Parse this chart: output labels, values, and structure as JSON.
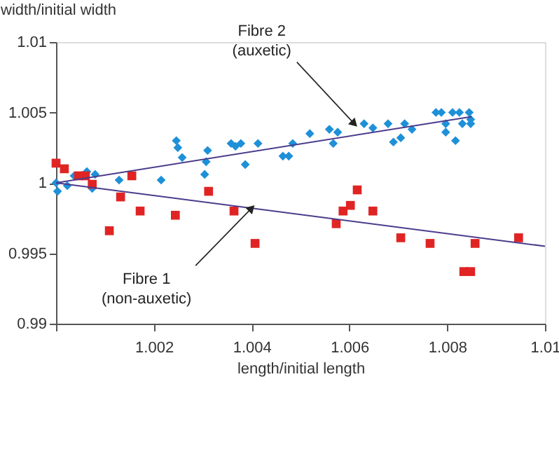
{
  "chart_data": {
    "type": "scatter",
    "xlabel": "length/initial length",
    "ylabel": "width/initial width",
    "xlim": [
      1.0,
      1.01
    ],
    "xticks": [
      {
        "value": 1.0,
        "label": null
      },
      1.002,
      1.004,
      1.006,
      1.008,
      1.01
    ],
    "ylim": [
      0.99,
      1.01
    ],
    "yticks": [
      0.99,
      0.995,
      1,
      1.005,
      1.01
    ],
    "grid": false,
    "series": [
      {
        "marker": "diamond",
        "color": "#1e90d8",
        "x": [
          1.0,
          1.00003,
          1.00023,
          1.00037,
          1.00063,
          1.00074,
          1.0008,
          1.00129,
          1.00215,
          1.00246,
          1.00249,
          1.00258,
          1.00304,
          1.00307,
          1.0031,
          1.00358,
          1.00367,
          1.00378,
          1.00387,
          1.00413,
          1.00464,
          1.00476,
          1.00484,
          1.00519,
          1.00559,
          1.00567,
          1.00576,
          1.0063,
          1.00648,
          1.00679,
          1.0069,
          1.00705,
          1.00713,
          1.00728,
          1.00777,
          1.00788,
          1.00797,
          1.00797,
          1.00811,
          1.00817,
          1.00825,
          1.00831,
          1.00845,
          1.00848,
          1.00848
        ],
        "values": [
          1.0,
          0.9994,
          0.9998,
          1.0005,
          1.0008,
          0.9996,
          1.0006,
          1.0002,
          1.0002,
          1.003,
          1.0025,
          1.0018,
          1.0006,
          1.0015,
          1.0023,
          1.0028,
          1.0026,
          1.0028,
          1.0013,
          1.0028,
          1.0019,
          1.0019,
          1.0028,
          1.0035,
          1.0038,
          1.0028,
          1.0036,
          1.0042,
          1.0039,
          1.0042,
          1.0029,
          1.0032,
          1.0042,
          1.0038,
          1.005,
          1.005,
          1.0042,
          1.0036,
          1.005,
          1.003,
          1.005,
          1.0042,
          1.005,
          1.0045,
          1.0042
        ]
      },
      {
        "marker": "square",
        "color": "#e02424",
        "x": [
          1.0,
          1.00017,
          1.00046,
          1.0006,
          1.00074,
          1.00109,
          1.00132,
          1.00155,
          1.00172,
          1.00244,
          1.00312,
          1.00364,
          1.00407,
          1.00573,
          1.00587,
          1.00602,
          1.00616,
          1.00648,
          1.00705,
          1.00765,
          1.00857,
          1.00834,
          1.00848,
          1.00946
        ],
        "values": [
          1.0014,
          1.001,
          1.0005,
          1.0005,
          0.9999,
          0.9966,
          0.999,
          1.0005,
          0.998,
          0.9977,
          0.9994,
          0.998,
          0.9957,
          0.9971,
          0.998,
          0.9984,
          0.9995,
          0.998,
          0.9961,
          0.9957,
          0.9957,
          0.9937,
          0.9937,
          0.9961
        ]
      },
      {
        "type": "line",
        "marker": "none",
        "color": "#4b3c8c",
        "x": [
          1.0,
          1.0085
        ],
        "values": [
          1.0,
          1.0047
        ]
      },
      {
        "type": "line",
        "marker": "none",
        "color": "#4b3c8c",
        "x": [
          1.0,
          1.01
        ],
        "values": [
          1.0,
          0.9955
        ]
      }
    ],
    "annotations": [
      {
        "text": "Fibre 2\n(auxetic)",
        "x": 1.0061,
        "y": 1.0042
      },
      {
        "text": "Fibre 1\n(non-auxetic)",
        "x": 1.004,
        "y": 0.9982
      }
    ]
  }
}
